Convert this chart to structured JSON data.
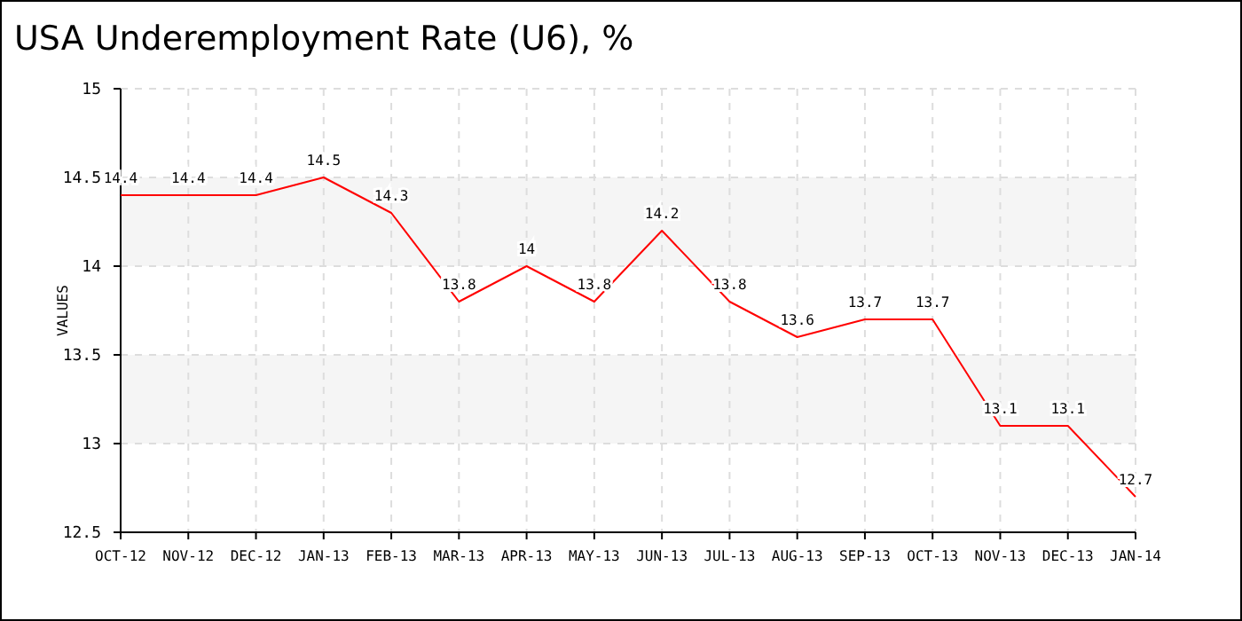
{
  "chart_data": {
    "type": "line",
    "title": "USA Underemployment Rate (U6), %",
    "ylabel": "VALUES",
    "categories": [
      "OCT-12",
      "NOV-12",
      "DEC-12",
      "JAN-13",
      "FEB-13",
      "MAR-13",
      "APR-13",
      "MAY-13",
      "JUN-13",
      "JUL-13",
      "AUG-13",
      "SEP-13",
      "OCT-13",
      "NOV-13",
      "DEC-13",
      "JAN-14"
    ],
    "series": [
      {
        "color": "#ff0000",
        "values": [
          14.4,
          14.4,
          14.4,
          14.5,
          14.3,
          13.8,
          14,
          13.8,
          14.2,
          13.8,
          13.6,
          13.7,
          13.7,
          13.1,
          13.1,
          12.7
        ]
      }
    ],
    "ylim": [
      12.5,
      15
    ],
    "yticks": [
      12.5,
      13,
      13.5,
      14,
      14.5,
      15
    ],
    "bands": [
      {
        "axis": "y",
        "from": 14,
        "to": 14.5,
        "color": "#f5f5f5"
      },
      {
        "axis": "y",
        "from": 13,
        "to": 13.5,
        "color": "#f5f5f5"
      }
    ],
    "grid": true,
    "data_labels": true,
    "marker": "none",
    "line_style": "solid"
  }
}
